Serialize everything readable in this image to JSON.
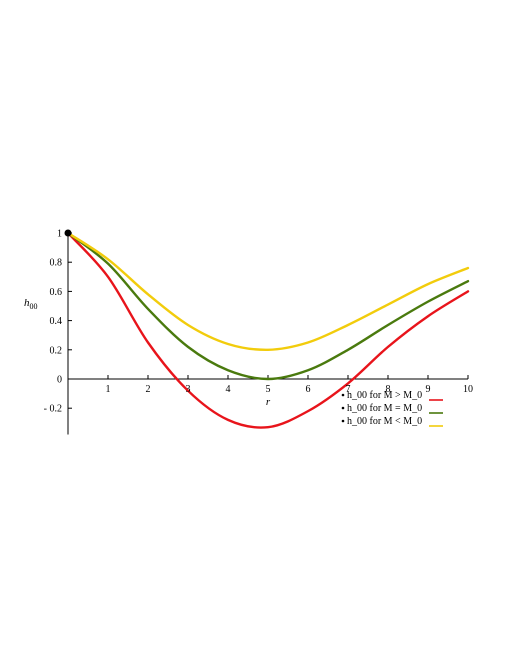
{
  "chart_data": {
    "type": "line",
    "xlabel": "r",
    "ylabel": "h",
    "ylabel_sub": "00",
    "xlim": [
      0,
      10
    ],
    "ylim": [
      -0.38,
      1.0
    ],
    "x_ticks": [
      1,
      2,
      3,
      4,
      5,
      6,
      7,
      8,
      9,
      10
    ],
    "y_ticks": [
      {
        "value": 1,
        "label": "1"
      },
      {
        "value": 0.8,
        "label": "0.8"
      },
      {
        "value": 0.6,
        "label": "0.6"
      },
      {
        "value": 0.4,
        "label": "0.4"
      },
      {
        "value": 0.2,
        "label": "0.2"
      },
      {
        "value": 0,
        "label": "0"
      },
      {
        "value": -0.2,
        "label": "- 0.2"
      }
    ],
    "grid": false,
    "legend_position": "bottom-right",
    "series": [
      {
        "name": "h_00 for M > M_0",
        "color": "#e8141b",
        "x": [
          0,
          1,
          2,
          3,
          4,
          5,
          6,
          7,
          8,
          9,
          10
        ],
        "y": [
          1.0,
          0.7,
          0.25,
          -0.08,
          -0.28,
          -0.33,
          -0.22,
          -0.03,
          0.22,
          0.43,
          0.6
        ]
      },
      {
        "name": "h_00 for M = M_0",
        "color": "#4a7a0e",
        "x": [
          0,
          1,
          2,
          3,
          4,
          5,
          6,
          7,
          8,
          9,
          10
        ],
        "y": [
          1.0,
          0.79,
          0.48,
          0.22,
          0.06,
          0.0,
          0.06,
          0.2,
          0.37,
          0.53,
          0.67
        ]
      },
      {
        "name": "h_00 for M < M_0",
        "color": "#f2cc0c",
        "x": [
          0,
          1,
          2,
          3,
          4,
          5,
          6,
          7,
          8,
          9,
          10
        ],
        "y": [
          1.0,
          0.82,
          0.58,
          0.37,
          0.24,
          0.2,
          0.25,
          0.37,
          0.51,
          0.65,
          0.76
        ]
      }
    ],
    "start_point": {
      "x": 0,
      "y": 1.0
    }
  }
}
